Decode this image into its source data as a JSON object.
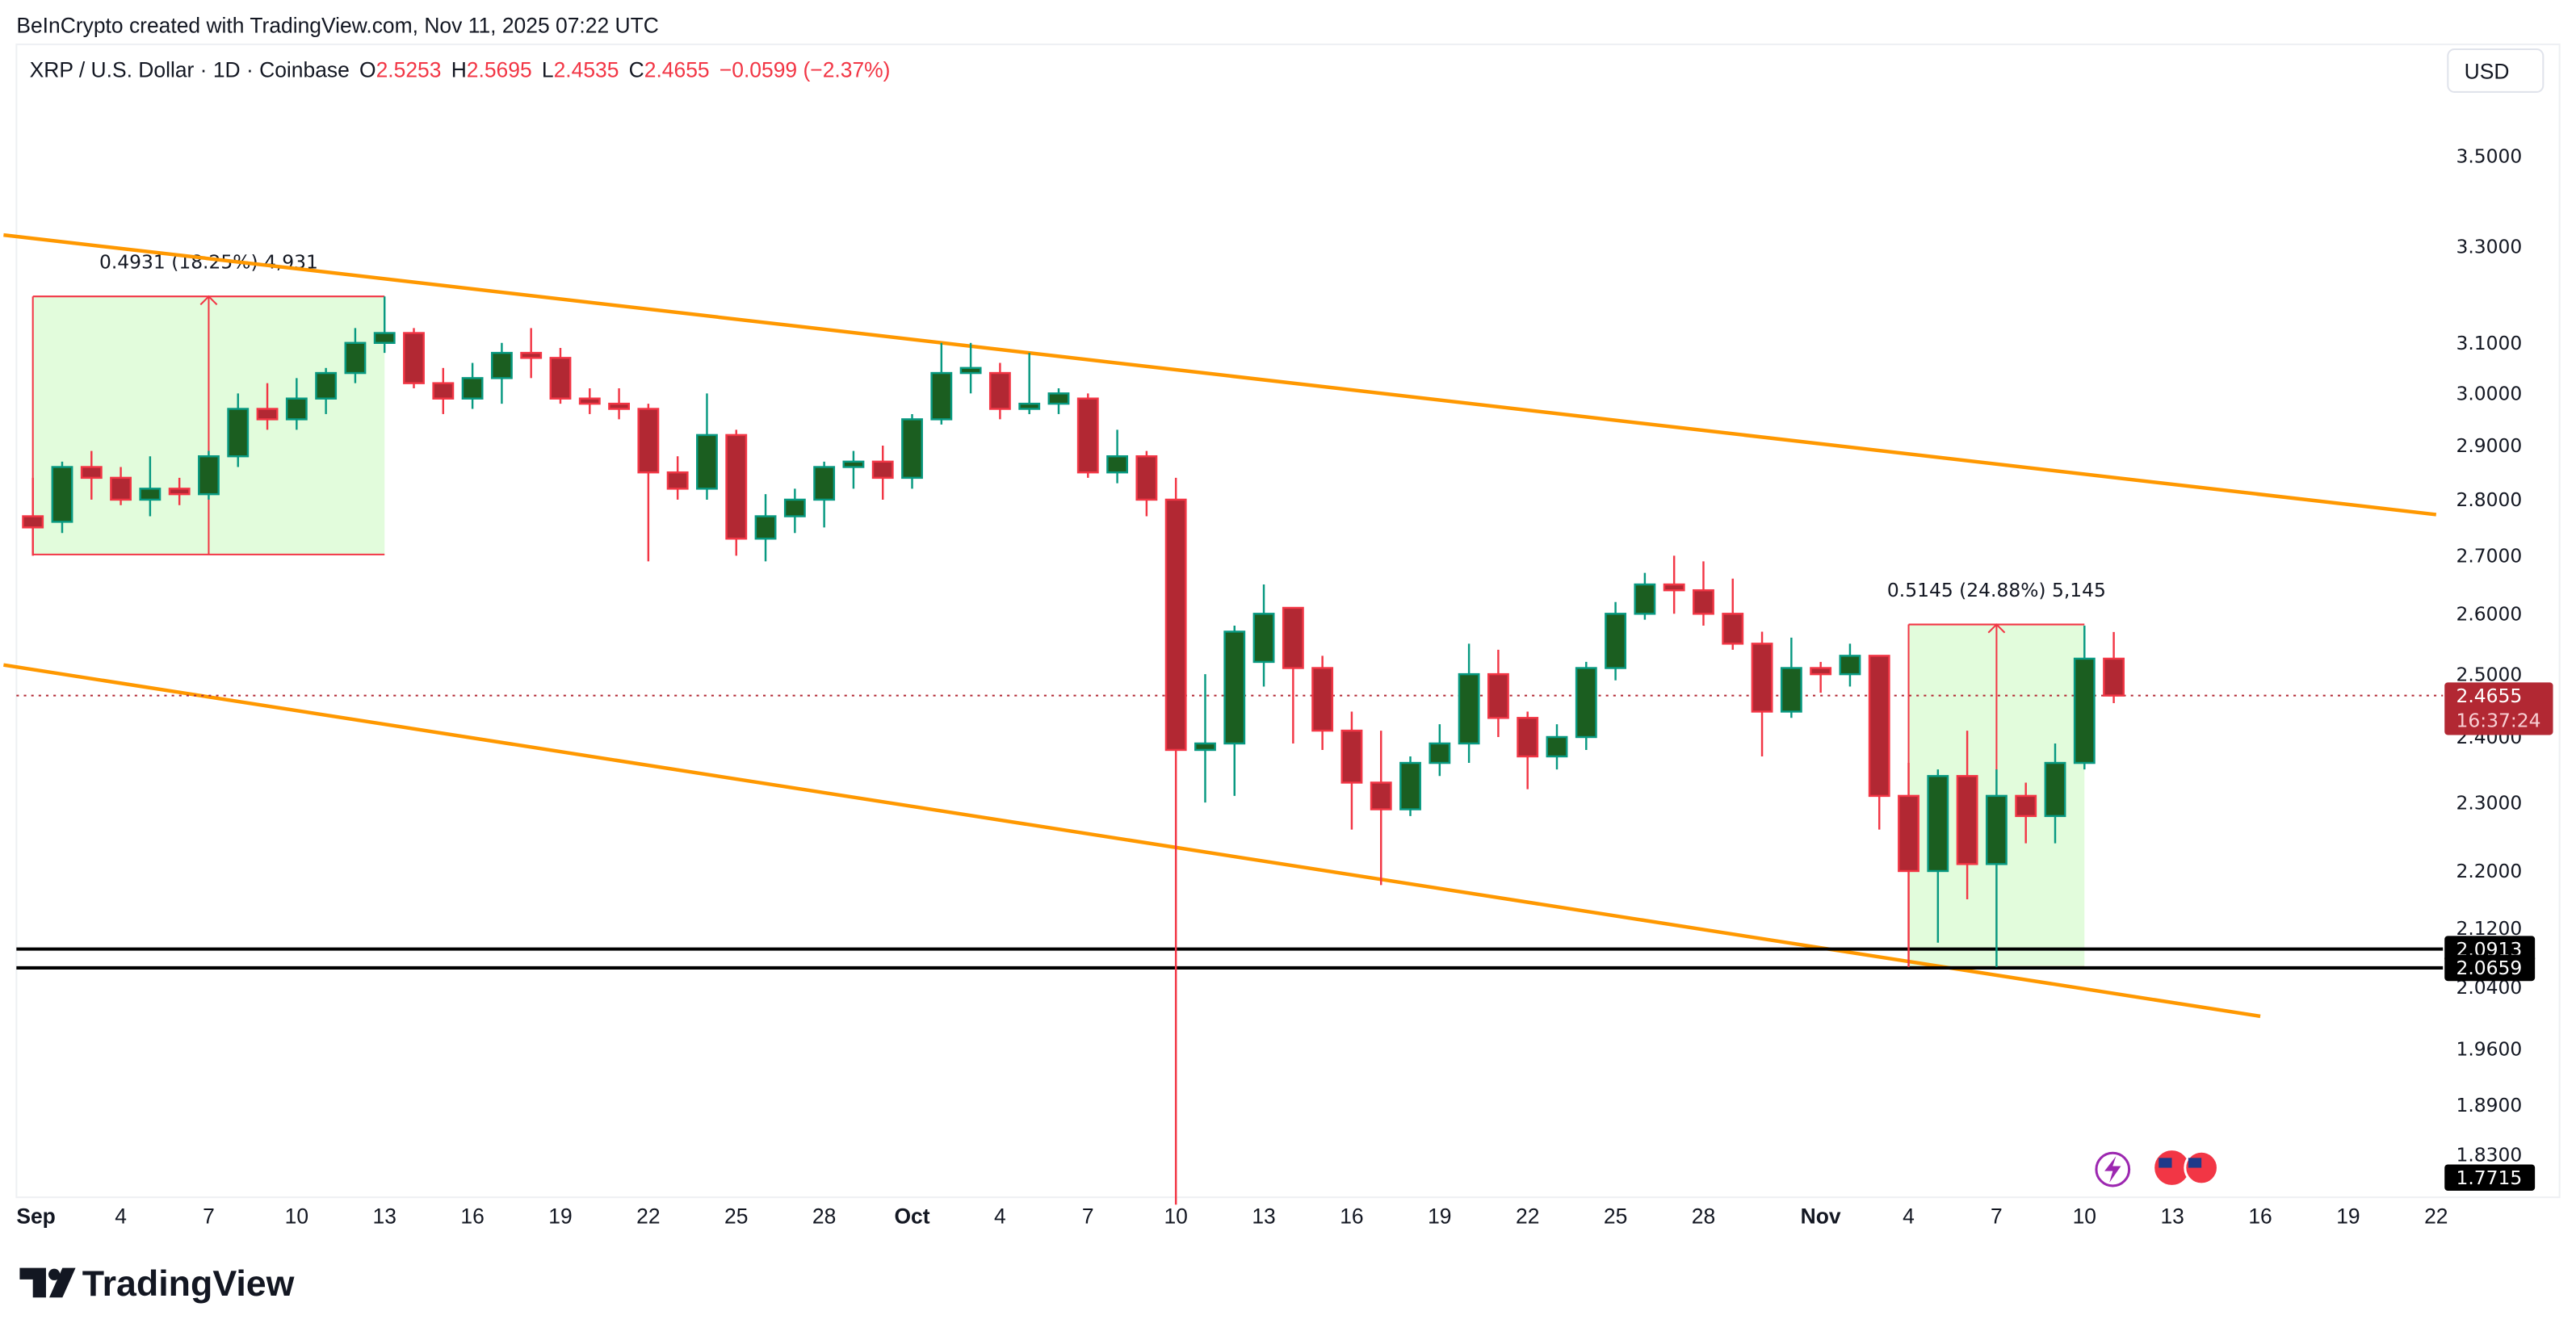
{
  "watermark": "BeInCrypto created with TradingView.com, Nov 11, 2025 07:22 UTC",
  "legend": {
    "symbol": "XRP / U.S. Dollar · 1D · Coinbase",
    "o_label": "O",
    "o": "2.5253",
    "h_label": "H",
    "h": "2.5695",
    "l_label": "L",
    "l": "2.4535",
    "c_label": "C",
    "c": "2.4655",
    "change": "−0.0599 (−2.37%)"
  },
  "currency_button": "USD",
  "brand": "TradingView",
  "colors": {
    "up_body": "#1b5e20",
    "up_border": "#089981",
    "down_body": "#b22833",
    "down_border": "#f23645",
    "channel": "#ff9800",
    "range_fill": "#e2fcdc",
    "range_line": "#f23645",
    "support": "#000000",
    "last_price": "#b22833"
  },
  "icons": [
    "lightning-icon",
    "us-flag-icon",
    "us-flag-icon"
  ],
  "chart_data": {
    "type": "candlestick",
    "scale": "log",
    "ylim": [
      1.77,
      3.5
    ],
    "grid": false,
    "yticks": [
      "3.5000",
      "3.3000",
      "3.1000",
      "3.0000",
      "2.9000",
      "2.8000",
      "2.7000",
      "2.6000",
      "2.5000",
      "2.4000",
      "2.3000",
      "2.2000",
      "2.1200",
      "2.0400",
      "1.9600",
      "1.8900",
      "1.8300"
    ],
    "xticks": [
      {
        "date": "2025-09-01",
        "label": "Sep"
      },
      {
        "date": "2025-09-04",
        "label": "4"
      },
      {
        "date": "2025-09-07",
        "label": "7"
      },
      {
        "date": "2025-09-10",
        "label": "10"
      },
      {
        "date": "2025-09-13",
        "label": "13"
      },
      {
        "date": "2025-09-16",
        "label": "16"
      },
      {
        "date": "2025-09-19",
        "label": "19"
      },
      {
        "date": "2025-09-22",
        "label": "22"
      },
      {
        "date": "2025-09-25",
        "label": "25"
      },
      {
        "date": "2025-09-28",
        "label": "28"
      },
      {
        "date": "2025-10-01",
        "label": "Oct"
      },
      {
        "date": "2025-10-04",
        "label": "4"
      },
      {
        "date": "2025-10-07",
        "label": "7"
      },
      {
        "date": "2025-10-10",
        "label": "10"
      },
      {
        "date": "2025-10-13",
        "label": "13"
      },
      {
        "date": "2025-10-16",
        "label": "16"
      },
      {
        "date": "2025-10-19",
        "label": "19"
      },
      {
        "date": "2025-10-22",
        "label": "22"
      },
      {
        "date": "2025-10-25",
        "label": "25"
      },
      {
        "date": "2025-10-28",
        "label": "28"
      },
      {
        "date": "2025-11-01",
        "label": "Nov"
      },
      {
        "date": "2025-11-04",
        "label": "4"
      },
      {
        "date": "2025-11-07",
        "label": "7"
      },
      {
        "date": "2025-11-10",
        "label": "10"
      },
      {
        "date": "2025-11-13",
        "label": "13"
      },
      {
        "date": "2025-11-16",
        "label": "16"
      },
      {
        "date": "2025-11-19",
        "label": "19"
      },
      {
        "date": "2025-11-22",
        "label": "22"
      }
    ],
    "candles": [
      [
        "2025-09-01",
        2.77,
        2.84,
        2.7,
        2.75
      ],
      [
        "2025-09-02",
        2.76,
        2.87,
        2.74,
        2.86
      ],
      [
        "2025-09-03",
        2.86,
        2.89,
        2.8,
        2.84
      ],
      [
        "2025-09-04",
        2.84,
        2.86,
        2.79,
        2.8
      ],
      [
        "2025-09-05",
        2.8,
        2.88,
        2.77,
        2.82
      ],
      [
        "2025-09-06",
        2.82,
        2.84,
        2.79,
        2.81
      ],
      [
        "2025-09-07",
        2.81,
        2.89,
        2.8,
        2.88
      ],
      [
        "2025-09-08",
        2.88,
        3.0,
        2.86,
        2.97
      ],
      [
        "2025-09-09",
        2.97,
        3.02,
        2.93,
        2.95
      ],
      [
        "2025-09-10",
        2.95,
        3.03,
        2.93,
        2.99
      ],
      [
        "2025-09-11",
        2.99,
        3.05,
        2.96,
        3.04
      ],
      [
        "2025-09-12",
        3.04,
        3.13,
        3.02,
        3.1
      ],
      [
        "2025-09-13",
        3.1,
        3.195,
        3.08,
        3.12
      ],
      [
        "2025-09-14",
        3.12,
        3.13,
        3.01,
        3.02
      ],
      [
        "2025-09-15",
        3.02,
        3.05,
        2.96,
        2.99
      ],
      [
        "2025-09-16",
        2.99,
        3.06,
        2.97,
        3.03
      ],
      [
        "2025-09-17",
        3.03,
        3.1,
        2.98,
        3.08
      ],
      [
        "2025-09-18",
        3.08,
        3.13,
        3.03,
        3.07
      ],
      [
        "2025-09-19",
        3.07,
        3.09,
        2.98,
        2.99
      ],
      [
        "2025-09-20",
        2.99,
        3.01,
        2.96,
        2.98
      ],
      [
        "2025-09-21",
        2.98,
        3.01,
        2.95,
        2.97
      ],
      [
        "2025-09-22",
        2.97,
        2.98,
        2.69,
        2.85
      ],
      [
        "2025-09-23",
        2.85,
        2.88,
        2.8,
        2.82
      ],
      [
        "2025-09-24",
        2.82,
        3.0,
        2.8,
        2.92
      ],
      [
        "2025-09-25",
        2.92,
        2.93,
        2.7,
        2.73
      ],
      [
        "2025-09-26",
        2.73,
        2.81,
        2.69,
        2.77
      ],
      [
        "2025-09-27",
        2.77,
        2.82,
        2.74,
        2.8
      ],
      [
        "2025-09-28",
        2.8,
        2.87,
        2.75,
        2.86
      ],
      [
        "2025-09-29",
        2.86,
        2.89,
        2.82,
        2.87
      ],
      [
        "2025-09-30",
        2.87,
        2.9,
        2.8,
        2.84
      ],
      [
        "2025-10-01",
        2.84,
        2.96,
        2.82,
        2.95
      ],
      [
        "2025-10-02",
        2.95,
        3.1,
        2.94,
        3.04
      ],
      [
        "2025-10-03",
        3.04,
        3.1,
        3.0,
        3.05
      ],
      [
        "2025-10-04",
        3.04,
        3.06,
        2.95,
        2.97
      ],
      [
        "2025-10-05",
        2.97,
        3.08,
        2.96,
        2.98
      ],
      [
        "2025-10-06",
        2.98,
        3.01,
        2.96,
        3.0
      ],
      [
        "2025-10-07",
        2.99,
        3.0,
        2.84,
        2.85
      ],
      [
        "2025-10-08",
        2.85,
        2.93,
        2.83,
        2.88
      ],
      [
        "2025-10-09",
        2.88,
        2.89,
        2.77,
        2.8
      ],
      [
        "2025-10-10",
        2.8,
        2.84,
        1.7715,
        2.38
      ],
      [
        "2025-10-11",
        2.38,
        2.5,
        2.3,
        2.39
      ],
      [
        "2025-10-12",
        2.39,
        2.58,
        2.31,
        2.57
      ],
      [
        "2025-10-13",
        2.52,
        2.65,
        2.48,
        2.6
      ],
      [
        "2025-10-14",
        2.61,
        2.61,
        2.39,
        2.51
      ],
      [
        "2025-10-15",
        2.51,
        2.53,
        2.38,
        2.41
      ],
      [
        "2025-10-16",
        2.41,
        2.44,
        2.26,
        2.33
      ],
      [
        "2025-10-17",
        2.33,
        2.41,
        2.18,
        2.29
      ],
      [
        "2025-10-18",
        2.29,
        2.37,
        2.28,
        2.36
      ],
      [
        "2025-10-19",
        2.36,
        2.42,
        2.34,
        2.39
      ],
      [
        "2025-10-20",
        2.39,
        2.55,
        2.36,
        2.5
      ],
      [
        "2025-10-21",
        2.5,
        2.54,
        2.4,
        2.43
      ],
      [
        "2025-10-22",
        2.43,
        2.44,
        2.32,
        2.37
      ],
      [
        "2025-10-23",
        2.37,
        2.42,
        2.35,
        2.4
      ],
      [
        "2025-10-24",
        2.4,
        2.52,
        2.38,
        2.51
      ],
      [
        "2025-10-25",
        2.51,
        2.62,
        2.49,
        2.6
      ],
      [
        "2025-10-26",
        2.6,
        2.67,
        2.59,
        2.65
      ],
      [
        "2025-10-27",
        2.65,
        2.7,
        2.6,
        2.64
      ],
      [
        "2025-10-28",
        2.64,
        2.69,
        2.58,
        2.6
      ],
      [
        "2025-10-29",
        2.6,
        2.66,
        2.54,
        2.55
      ],
      [
        "2025-10-30",
        2.55,
        2.57,
        2.37,
        2.44
      ],
      [
        "2025-10-31",
        2.44,
        2.56,
        2.43,
        2.51
      ],
      [
        "2025-11-01",
        2.51,
        2.52,
        2.47,
        2.5
      ],
      [
        "2025-11-02",
        2.5,
        2.55,
        2.48,
        2.53
      ],
      [
        "2025-11-03",
        2.53,
        2.53,
        2.26,
        2.31
      ],
      [
        "2025-11-04",
        2.31,
        2.36,
        2.067,
        2.2
      ],
      [
        "2025-11-05",
        2.2,
        2.35,
        2.1,
        2.34
      ],
      [
        "2025-11-06",
        2.34,
        2.41,
        2.16,
        2.21
      ],
      [
        "2025-11-07",
        2.21,
        2.35,
        2.067,
        2.31
      ],
      [
        "2025-11-08",
        2.31,
        2.33,
        2.24,
        2.28
      ],
      [
        "2025-11-09",
        2.28,
        2.39,
        2.24,
        2.36
      ],
      [
        "2025-11-10",
        2.36,
        2.58,
        2.35,
        2.5253
      ],
      [
        "2025-11-11",
        2.5253,
        2.5695,
        2.4535,
        2.4655
      ]
    ],
    "channel_lines": [
      {
        "from": [
          "2025-08-31",
          3.325
        ],
        "to": [
          "2025-11-22",
          2.773
        ]
      },
      {
        "from": [
          "2025-08-31",
          2.515
        ],
        "to": [
          "2025-11-16",
          2.002
        ]
      }
    ],
    "support_lines": [
      {
        "price": 2.0913,
        "label": "2.0913"
      },
      {
        "price": 2.0659,
        "label": "2.0659"
      }
    ],
    "low_label": "1.7715",
    "last_price": {
      "price": 2.4655,
      "label": "2.4655",
      "countdown": "16:37:24"
    },
    "ranges": [
      {
        "start": "2025-09-01",
        "end": "2025-09-13",
        "low": 2.702,
        "high": 3.195,
        "label": "0.4931 (18.25%) 4,931"
      },
      {
        "start": "2025-11-04",
        "end": "2025-11-10",
        "low": 2.067,
        "high": 2.582,
        "label": "0.5145 (24.88%) 5,145"
      }
    ]
  }
}
